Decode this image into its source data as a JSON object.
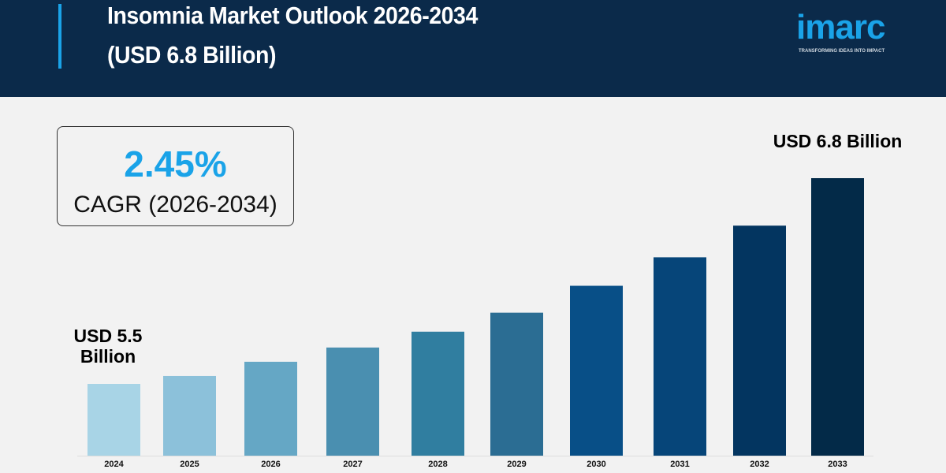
{
  "header": {
    "title": "Insomnia Market Outlook 2026-2034",
    "subtitle": "(USD 6.8 Billion)",
    "logo": "imarc",
    "logo_tagline": "TRANSFORMING IDEAS INTO IMPACT"
  },
  "cagr": {
    "value": "2.45%",
    "label": "CAGR (2026-2034)"
  },
  "colors": {
    "header_bg": "#0b2a4a",
    "accent": "#1aa3e8",
    "background": "#f2f2f2"
  },
  "chart_data": {
    "type": "bar",
    "title": "Insomnia Market Outlook 2026-2034",
    "categories": [
      "2024",
      "2025",
      "2026",
      "2027",
      "2028",
      "2029",
      "2030",
      "2031",
      "2032",
      "2033"
    ],
    "values": [
      5.5,
      5.55,
      5.64,
      5.73,
      5.83,
      5.95,
      6.12,
      6.3,
      6.5,
      6.8
    ],
    "unit": "USD Billion",
    "bar_colors": [
      "#a8d4e6",
      "#8cc1da",
      "#65a7c5",
      "#4a8fb0",
      "#307ea0",
      "#2b6d93",
      "#084f87",
      "#064579",
      "#033560",
      "#032a48"
    ],
    "annotations": {
      "start": "USD 5.5 Billion",
      "start_line1": "USD 5.5",
      "start_line2": "Billion",
      "end": "USD 6.8 Billion"
    },
    "grid": false,
    "legend": "none"
  }
}
